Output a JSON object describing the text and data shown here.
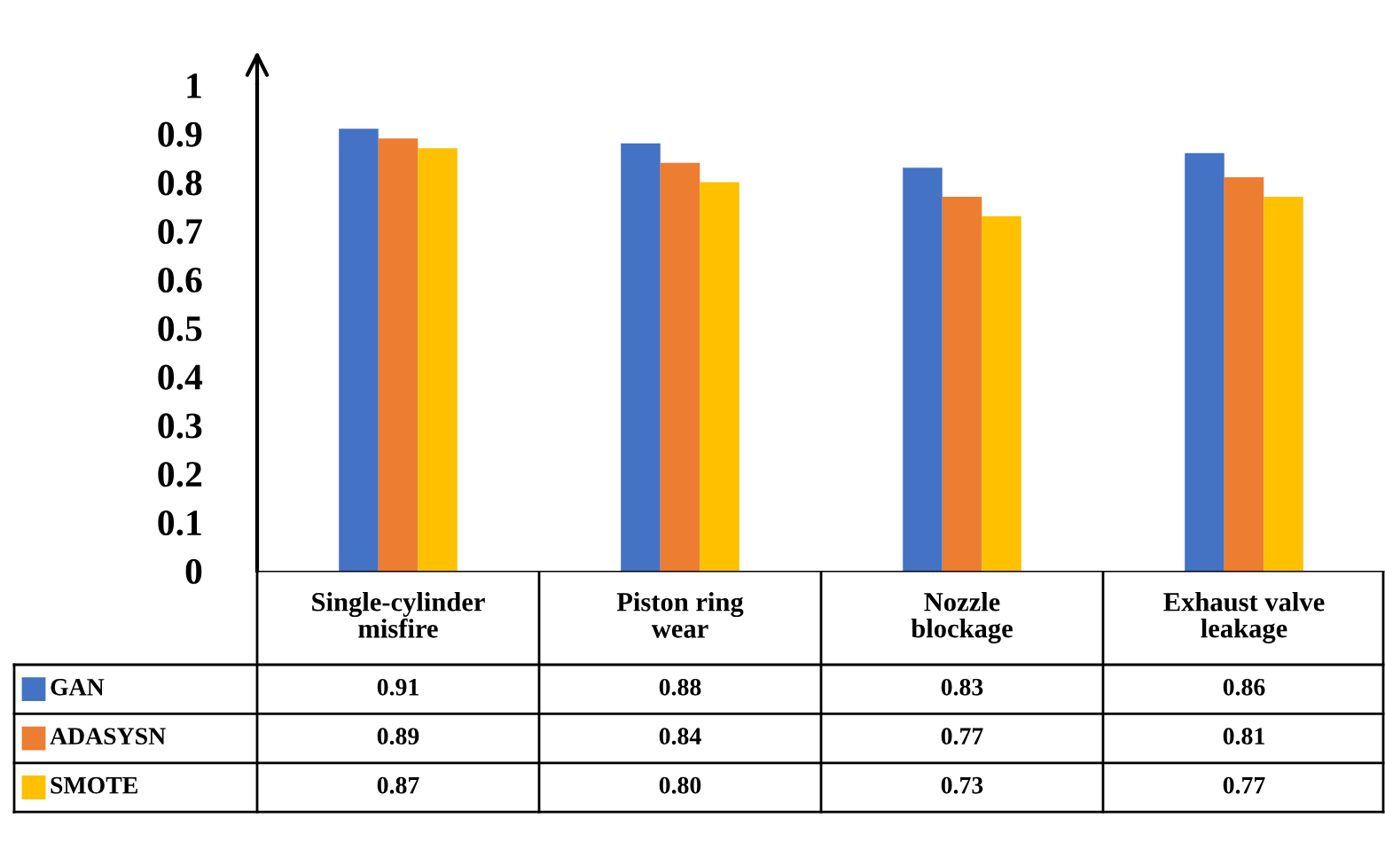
{
  "chart_data": {
    "type": "bar",
    "categories": [
      "Single-cylinder\nmisfire",
      "Piston ring\nwear",
      "Nozzle\nblockage",
      "Exhaust valve\nleakage"
    ],
    "series": [
      {
        "name": "GAN",
        "color": "#4472c4",
        "values": [
          0.91,
          0.88,
          0.83,
          0.86
        ],
        "value_labels": [
          "0.91",
          "0.88",
          "0.83",
          "0.86"
        ]
      },
      {
        "name": "ADASYSN",
        "color": "#ed7d31",
        "values": [
          0.89,
          0.84,
          0.77,
          0.81
        ],
        "value_labels": [
          "0.89",
          "0.84",
          "0.77",
          "0.81"
        ]
      },
      {
        "name": "SMOTE",
        "color": "#ffc000",
        "values": [
          0.87,
          0.8,
          0.73,
          0.77
        ],
        "value_labels": [
          "0.87",
          "0.80",
          "0.73",
          "0.77"
        ]
      }
    ],
    "ylim": [
      0,
      1
    ],
    "yticks": [
      0,
      0.1,
      0.2,
      0.3,
      0.4,
      0.5,
      0.6,
      0.7,
      0.8,
      0.9,
      1
    ],
    "grid": false,
    "legend": "bottom left"
  }
}
